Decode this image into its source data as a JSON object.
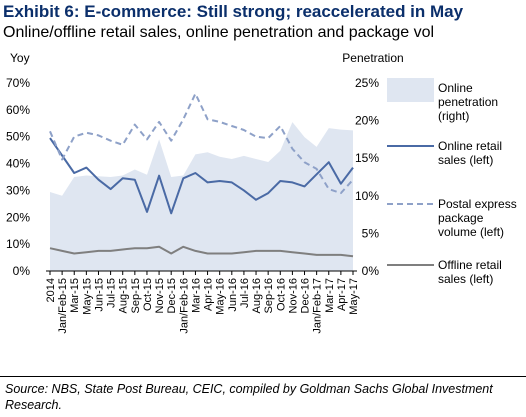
{
  "title": "Exhibit 6: E-commerce: Still strong; reaccelerated in May",
  "subtitle": "Online/offline retail sales, online penetration and package vol",
  "source": "Source:  NBS, State Post Bureau, CEIC, compiled by Goldman Sachs Global Investment Research.",
  "chart_data": {
    "type": "line",
    "left_axis_label": "Yoy",
    "right_axis_label": "Penetration",
    "left_ylim": [
      0,
      70
    ],
    "left_ticks": [
      "0%",
      "10%",
      "20%",
      "30%",
      "40%",
      "50%",
      "60%",
      "70%"
    ],
    "right_ylim": [
      0,
      25
    ],
    "right_ticks": [
      "0%",
      "5%",
      "10%",
      "15%",
      "20%",
      "25%"
    ],
    "x_tick_labels": [
      "2014",
      "Jan/Feb-15",
      "Mar-15",
      "May-15",
      "Jun-15",
      "Jul-15",
      "Aug-15",
      "Sep-15",
      "Oct-15",
      "Nov-15",
      "Dec-15",
      "Jan/Feb-16",
      "Mar-16",
      "Apr-16",
      "May-16",
      "Jun-16",
      "Jul-16",
      "Aug-16",
      "Sep-16",
      "Oct-16",
      "Nov-16",
      "Dec-16",
      "Jan/Feb-17",
      "Mar-17",
      "Apr-17",
      "May-17"
    ],
    "grid": false,
    "legend_position": "right",
    "series": [
      {
        "name": "Online penetration (right)",
        "type": "area",
        "axis": "right",
        "color": "#dfe6f1",
        "values": [
          10.5,
          10.0,
          12.5,
          12.7,
          12.6,
          12.5,
          12.7,
          13.5,
          12.8,
          17.5,
          12.5,
          12.7,
          15.5,
          15.8,
          15.2,
          14.9,
          15.3,
          14.9,
          14.5,
          16.0,
          19.8,
          17.8,
          16.5,
          19.0,
          18.8,
          18.7
        ]
      },
      {
        "name": "Online retail sales (left)",
        "type": "line",
        "axis": "left",
        "color": "#4a6aa5",
        "values": [
          49.5,
          43.0,
          36.5,
          38.5,
          34.0,
          30.5,
          34.5,
          34.0,
          22.0,
          35.5,
          21.5,
          34.5,
          36.5,
          33.0,
          33.5,
          33.0,
          30.0,
          26.5,
          29.0,
          33.5,
          33.0,
          31.5,
          36.0,
          40.5,
          32.5,
          38.5
        ]
      },
      {
        "name": "Postal express package volume (left)",
        "type": "line",
        "dashed": true,
        "axis": "left",
        "color": "#8ea1c8",
        "values": [
          52.0,
          41.5,
          50.0,
          51.5,
          50.5,
          48.5,
          47.0,
          54.5,
          49.0,
          55.5,
          48.5,
          56.5,
          66.0,
          56.5,
          55.5,
          54.0,
          52.5,
          50.0,
          49.5,
          54.0,
          45.5,
          40.5,
          38.0,
          30.5,
          29.0,
          34.0
        ]
      },
      {
        "name": "Offline retail sales (left)",
        "type": "line",
        "axis": "left",
        "color": "#7f7f7f",
        "values": [
          8.5,
          7.5,
          6.5,
          7.0,
          7.5,
          7.5,
          8.0,
          8.5,
          8.5,
          9.0,
          6.5,
          9.0,
          7.5,
          6.5,
          6.5,
          6.5,
          7.0,
          7.5,
          7.5,
          7.5,
          7.0,
          6.5,
          6.0,
          6.0,
          6.0,
          5.5
        ]
      }
    ]
  }
}
